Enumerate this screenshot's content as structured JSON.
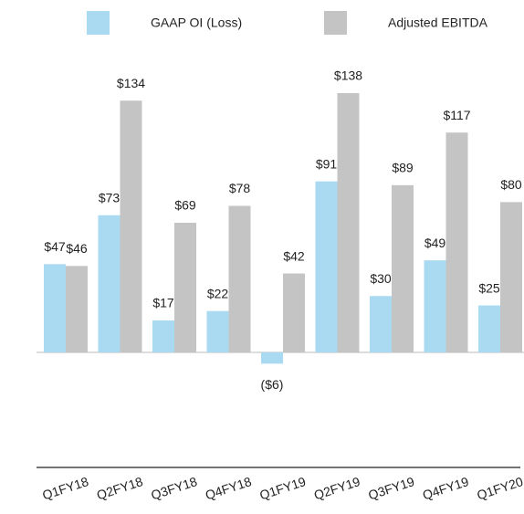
{
  "chart_data": {
    "type": "bar",
    "categories": [
      "Q1FY18",
      "Q2FY18",
      "Q3FY18",
      "Q4FY18",
      "Q1FY19",
      "Q2FY19",
      "Q3FY19",
      "Q4FY19",
      "Q1FY20"
    ],
    "series": [
      {
        "name": "GAAP OI (Loss)",
        "color": "#aad9f2",
        "values": [
          47,
          73,
          17,
          22,
          -6,
          91,
          30,
          49,
          25
        ],
        "value_labels": [
          "$47",
          "$73",
          "$17",
          "$22",
          "($6)",
          "$91",
          "$30",
          "$49",
          "$25"
        ]
      },
      {
        "name": "Adjusted EBITDA",
        "color": "#c4c4c4",
        "values": [
          46,
          134,
          69,
          78,
          42,
          138,
          89,
          117,
          80
        ],
        "value_labels": [
          "$46",
          "$134",
          "$69",
          "$78",
          "$42",
          "$138",
          "$89",
          "$117",
          "$80"
        ]
      }
    ]
  }
}
